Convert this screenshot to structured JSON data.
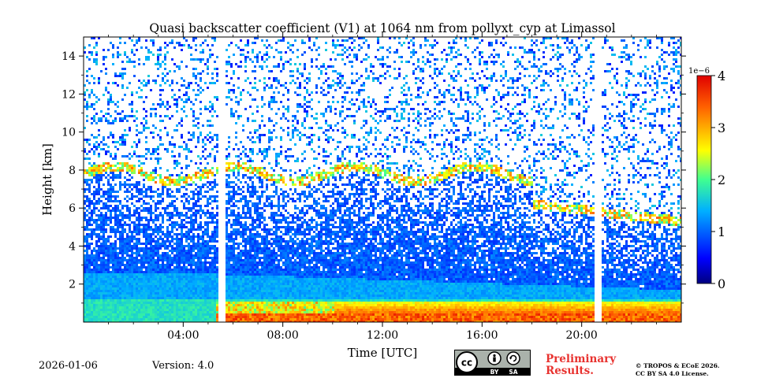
{
  "chart_data": {
    "type": "heatmap",
    "title": "Quasi backscatter coefficient (V1) at 1064 nm from pollyxt_cyp at Limassol",
    "xlabel": "Time [UTC]",
    "ylabel": "Height [km]",
    "x_ticks": [
      "04:00",
      "08:00",
      "12:00",
      "16:00",
      "20:00"
    ],
    "x_tick_hours": [
      4,
      8,
      12,
      16,
      20
    ],
    "xlim_hours": [
      0,
      24
    ],
    "y_ticks": [
      "2",
      "4",
      "6",
      "8",
      "10",
      "12",
      "14"
    ],
    "y_tick_values": [
      2,
      4,
      6,
      8,
      10,
      12,
      14
    ],
    "ylim_km": [
      0,
      15
    ],
    "colorbar": {
      "label": "1e−6",
      "ticks": [
        "0",
        "1",
        "2",
        "3",
        "4"
      ],
      "tick_values": [
        0,
        1,
        2,
        3,
        4
      ],
      "range": [
        0,
        4
      ],
      "colormap": "jet"
    },
    "features": {
      "missing_data_hours": [
        5.5,
        20.6
      ],
      "aerosol_layer_top_km": 2.6,
      "noise_top_day_km": 7.5,
      "noise_top_late_km": 5.5,
      "high_backscatter_layer_km": [
        0.2,
        1.2
      ]
    }
  },
  "footer": {
    "date": "2026-01-06",
    "version": "Version: 4.0",
    "preliminary_line1": "Preliminary",
    "preliminary_line2": "Results.",
    "copyright_line1": "© TROPOS & ECoE 2026.",
    "copyright_line2": "CC BY SA 4.0 License.",
    "cc_badge": {
      "cc": "cc",
      "by": "BY",
      "sa": "SA"
    }
  },
  "colors": {
    "colormap_stops": [
      "#00007f",
      "#0000ff",
      "#007fff",
      "#00ffff",
      "#7fff7f",
      "#ffff00",
      "#ff7f00",
      "#ff0000",
      "#7f0000"
    ],
    "preliminary": "#e8322f"
  }
}
